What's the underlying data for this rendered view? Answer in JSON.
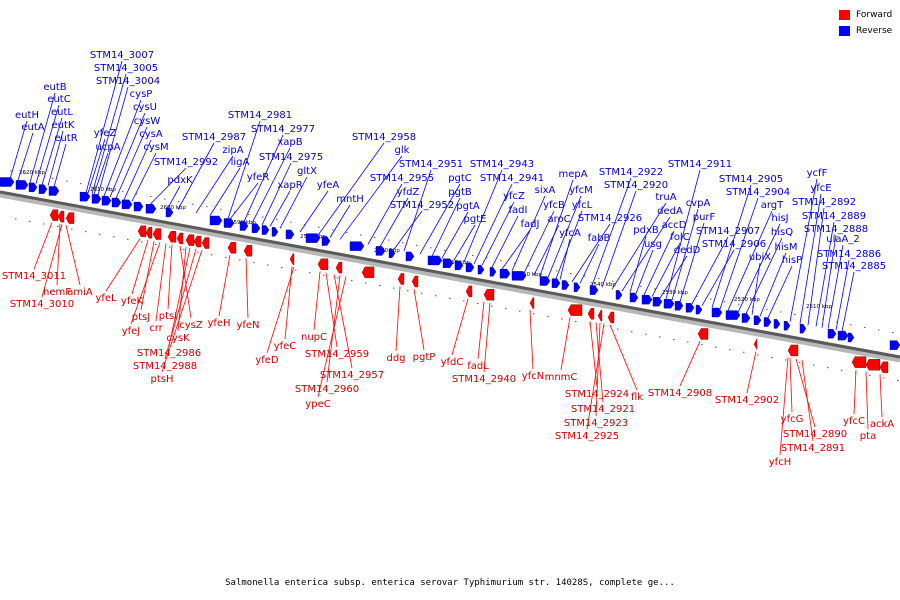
{
  "legend": {
    "forward_label": "Forward",
    "reverse_label": "Reverse",
    "forward_color": "#ff0000",
    "reverse_color": "#0000ff"
  },
  "caption": "Salmonella enterica subsp. enterica serovar Typhimurium str. 14028S, complete ge...",
  "ticks": [
    "2620 kbp",
    "2610 kbp",
    "2600 kbp",
    "2590 kbp",
    "2580 kbp",
    "2570 kbp",
    "2560 kbp",
    "2550 kbp",
    "2540 kbp",
    "2530 kbp",
    "2520 kbp",
    "2510 kbp"
  ],
  "reverse_genes": [
    "eutH",
    "eutA",
    "eutB",
    "eutC",
    "eutL",
    "eutK",
    "eutR",
    "STM14_3007",
    "STM14_3005",
    "STM14_3004",
    "cysP",
    "yfeZ",
    "ucpA",
    "cysU",
    "cysW",
    "cysA",
    "cysM",
    "STM14_2992",
    "STM14_2987",
    "pdxK",
    "zipA",
    "ligA",
    "STM14_2981",
    "STM14_2977",
    "yfeR",
    "xapB",
    "STM14_2975",
    "xapR",
    "gltX",
    "yfeA",
    "STM14_2958",
    "mntH",
    "glk",
    "STM14_2955",
    "yfdZ",
    "STM14_2952",
    "STM14_2951",
    "pgtC",
    "pgtB",
    "pgtA",
    "pgtE",
    "STM14_2943",
    "STM14_2941",
    "yfcZ",
    "fadI",
    "fadJ",
    "sixA",
    "yfcB",
    "aroC",
    "mepA",
    "yfcM",
    "yfcL",
    "yfcA",
    "STM14_2926",
    "fabB",
    "STM14_2922",
    "STM14_2920",
    "truA",
    "dedA",
    "pdxB",
    "usg",
    "accD",
    "folC",
    "dedD",
    "STM14_2911",
    "cvpA",
    "purF",
    "STM14_2907",
    "STM14_2906",
    "STM14_2905",
    "STM14_2904",
    "argT",
    "hisJ",
    "hisQ",
    "ubiX",
    "hisM",
    "hisP",
    "ycfF",
    "yfcE",
    "STM14_2892",
    "STM14_2889",
    "STM14_2888",
    "ulaA_2",
    "STM14_2886",
    "STM14_2885"
  ],
  "forward_genes": [
    "STM14_3011",
    "hemF",
    "amiA",
    "STM14_3010",
    "yfeL",
    "yfeK",
    "ptsJ",
    "yfeJ",
    "crr",
    "ptsI",
    "cysZ",
    "cysK",
    "STM14_2986",
    "STM14_2988",
    "ptsH",
    "yfeH",
    "yfeN",
    "yfeC",
    "yfeD",
    "nupC",
    "STM14_2959",
    "STM14_2957",
    "STM14_2960",
    "ypeC",
    "ddg",
    "pgtP",
    "yfdC",
    "fadL",
    "STM14_2940",
    "yfcN",
    "mnmC",
    "STM14_2924",
    "STM14_2921",
    "STM14_2923",
    "STM14_2925",
    "flk",
    "STM14_2908",
    "STM14_2902",
    "yfcG",
    "STM14_2890",
    "STM14_2891",
    "yfcH",
    "yfcC",
    "pta",
    "ackA"
  ]
}
